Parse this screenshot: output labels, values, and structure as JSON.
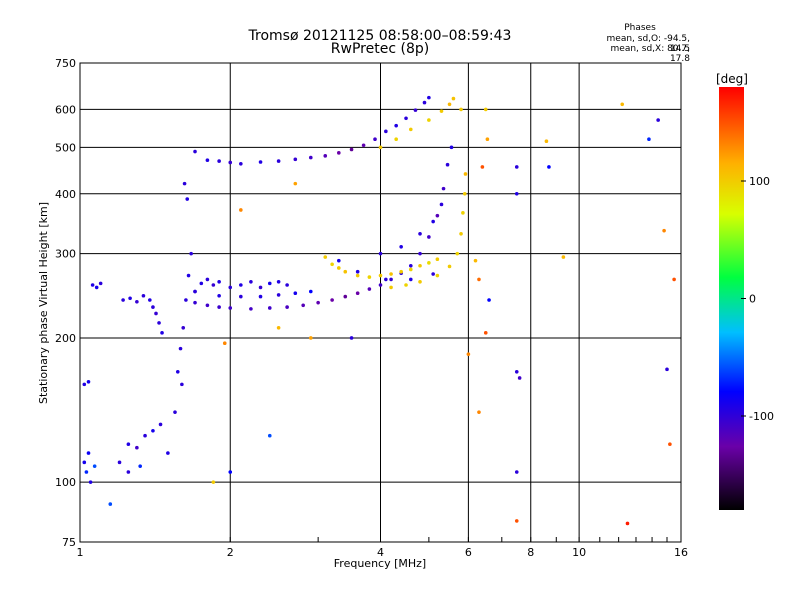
{
  "title_line1": "Tromsø 20121125 08:58:00–08:59:43",
  "title_line2": "RwPretec (8p)",
  "phase_box": {
    "heading": "Phases",
    "line1": "mean, sd,O: -94.5, 14.5",
    "line2": "mean, sd,X:  80.7, 17.8"
  },
  "chart_data": {
    "type": "scatter",
    "title": "Tromsø 20121125 08:58:00–08:59:43",
    "subtitle": "RwPretec (8p)",
    "xlabel": "Frequency [MHz]",
    "ylabel": "Stationary phase Virtual Height [km]",
    "x_scale": "log",
    "y_scale": "log",
    "xlim": [
      1,
      16
    ],
    "ylim": [
      75,
      750
    ],
    "x_ticks": [
      1,
      2,
      4,
      6,
      8,
      10,
      16
    ],
    "x_ticklabels": [
      "1",
      "2",
      "4",
      "6",
      "8",
      "10",
      "16"
    ],
    "y_ticks": [
      75,
      100,
      200,
      300,
      400,
      500,
      600,
      750
    ],
    "y_ticklabels": [
      "75",
      "100",
      "200",
      "300",
      "400",
      "500",
      "600",
      "750"
    ],
    "grid": true,
    "colorbar": {
      "label": "[deg]",
      "range": [
        -180,
        180
      ],
      "ticks": [
        100,
        0,
        -100
      ],
      "ticklabels": [
        "100",
        "0",
        "-100"
      ],
      "colormap": "rainbow"
    },
    "series": [
      {
        "columns": [
          "freq_mhz",
          "height_km",
          "phase_deg"
        ],
        "points": [
          [
            1.02,
            110,
            -90
          ],
          [
            1.03,
            105,
            -70
          ],
          [
            1.04,
            115,
            -85
          ],
          [
            1.05,
            100,
            -95
          ],
          [
            1.07,
            108,
            -60
          ],
          [
            1.02,
            160,
            -95
          ],
          [
            1.04,
            162,
            -90
          ],
          [
            1.06,
            258,
            -95
          ],
          [
            1.08,
            255,
            -90
          ],
          [
            1.1,
            260,
            -100
          ],
          [
            1.22,
            240,
            -100
          ],
          [
            1.26,
            242,
            -95
          ],
          [
            1.3,
            238,
            -105
          ],
          [
            1.34,
            245,
            -100
          ],
          [
            1.38,
            240,
            -95
          ],
          [
            1.4,
            232,
            -100
          ],
          [
            1.42,
            225,
            -105
          ],
          [
            1.44,
            215,
            -100
          ],
          [
            1.46,
            205,
            -95
          ],
          [
            1.2,
            110,
            -100
          ],
          [
            1.25,
            120,
            -95
          ],
          [
            1.3,
            118,
            -110
          ],
          [
            1.35,
            125,
            -100
          ],
          [
            1.4,
            128,
            -90
          ],
          [
            1.45,
            132,
            -100
          ],
          [
            1.5,
            115,
            -95
          ],
          [
            1.25,
            105,
            -100
          ],
          [
            1.32,
            108,
            -70
          ],
          [
            1.55,
            140,
            -100
          ],
          [
            1.57,
            170,
            -95
          ],
          [
            1.59,
            190,
            -100
          ],
          [
            1.61,
            210,
            -105
          ],
          [
            1.63,
            240,
            -100
          ],
          [
            1.65,
            270,
            -95
          ],
          [
            1.67,
            300,
            -100
          ],
          [
            1.62,
            420,
            -100
          ],
          [
            1.64,
            390,
            -95
          ],
          [
            1.6,
            160,
            -100
          ],
          [
            1.7,
            250,
            -100
          ],
          [
            1.75,
            260,
            -95
          ],
          [
            1.8,
            265,
            -100
          ],
          [
            1.85,
            258,
            -105
          ],
          [
            1.9,
            262,
            -95
          ],
          [
            2.0,
            255,
            -100
          ],
          [
            2.1,
            258,
            -95
          ],
          [
            2.2,
            262,
            -100
          ],
          [
            2.3,
            255,
            -105
          ],
          [
            2.4,
            260,
            -90
          ],
          [
            2.5,
            262,
            -95
          ],
          [
            2.6,
            258,
            -100
          ],
          [
            1.7,
            237,
            -105
          ],
          [
            1.8,
            234,
            -110
          ],
          [
            1.9,
            232,
            -108
          ],
          [
            2.0,
            231,
            -110
          ],
          [
            2.2,
            230,
            -112
          ],
          [
            2.4,
            231,
            -110
          ],
          [
            2.6,
            232,
            -115
          ],
          [
            2.8,
            234,
            -120
          ],
          [
            3.0,
            237,
            -125
          ],
          [
            3.2,
            240,
            -130
          ],
          [
            3.4,
            244,
            -135
          ],
          [
            3.6,
            248,
            -130
          ],
          [
            3.8,
            253,
            -120
          ],
          [
            4.0,
            258,
            -110
          ],
          [
            4.2,
            265,
            -105
          ],
          [
            4.4,
            273,
            -100
          ],
          [
            4.6,
            283,
            -100
          ],
          [
            4.8,
            300,
            -105
          ],
          [
            5.0,
            325,
            -110
          ],
          [
            5.2,
            360,
            -120
          ],
          [
            5.35,
            410,
            -110
          ],
          [
            5.45,
            460,
            -100
          ],
          [
            5.55,
            500,
            -95
          ],
          [
            1.7,
            250,
            -100
          ],
          [
            1.9,
            245,
            -95
          ],
          [
            2.1,
            244,
            -100
          ],
          [
            2.3,
            244,
            -95
          ],
          [
            2.5,
            246,
            -100
          ],
          [
            2.7,
            248,
            -90
          ],
          [
            2.9,
            250,
            -80
          ],
          [
            1.7,
            490,
            -100
          ],
          [
            1.8,
            470,
            -95
          ],
          [
            1.9,
            468,
            -100
          ],
          [
            2.0,
            465,
            -105
          ],
          [
            2.1,
            462,
            -100
          ],
          [
            2.3,
            466,
            -95
          ],
          [
            2.5,
            468,
            -100
          ],
          [
            2.7,
            472,
            -105
          ],
          [
            2.9,
            476,
            -110
          ],
          [
            3.1,
            480,
            -120
          ],
          [
            3.3,
            487,
            -130
          ],
          [
            3.5,
            495,
            -135
          ],
          [
            3.7,
            505,
            -125
          ],
          [
            3.9,
            520,
            -110
          ],
          [
            4.1,
            540,
            -100
          ],
          [
            4.3,
            555,
            -95
          ],
          [
            4.5,
            575,
            -100
          ],
          [
            4.7,
            598,
            -105
          ],
          [
            4.9,
            620,
            -100
          ],
          [
            5.0,
            635,
            -95
          ],
          [
            3.1,
            295,
            100
          ],
          [
            3.2,
            285,
            95
          ],
          [
            3.3,
            280,
            100
          ],
          [
            3.4,
            275,
            105
          ],
          [
            3.6,
            270,
            100
          ],
          [
            3.8,
            268,
            95
          ],
          [
            4.0,
            270,
            100
          ],
          [
            4.2,
            272,
            105
          ],
          [
            4.4,
            275,
            100
          ],
          [
            4.6,
            278,
            95
          ],
          [
            4.8,
            283,
            100
          ],
          [
            5.0,
            287,
            90
          ],
          [
            5.2,
            292,
            100
          ],
          [
            4.2,
            255,
            100
          ],
          [
            4.5,
            258,
            95
          ],
          [
            4.8,
            262,
            100
          ],
          [
            5.2,
            270,
            95
          ],
          [
            5.5,
            282,
            100
          ],
          [
            5.7,
            300,
            95
          ],
          [
            5.8,
            330,
            100
          ],
          [
            5.85,
            365,
            95
          ],
          [
            5.9,
            400,
            100
          ],
          [
            5.92,
            440,
            110
          ],
          [
            4.0,
            500,
            100
          ],
          [
            4.3,
            520,
            95
          ],
          [
            4.6,
            545,
            100
          ],
          [
            5.0,
            570,
            95
          ],
          [
            5.3,
            595,
            100
          ],
          [
            5.5,
            615,
            110
          ],
          [
            5.6,
            632,
            105
          ],
          [
            3.3,
            290,
            -90
          ],
          [
            3.6,
            275,
            -95
          ],
          [
            4.1,
            265,
            -100
          ],
          [
            4.6,
            265,
            -95
          ],
          [
            5.1,
            272,
            -100
          ],
          [
            4.0,
            300,
            -100
          ],
          [
            4.4,
            310,
            -95
          ],
          [
            4.8,
            330,
            -100
          ],
          [
            5.1,
            350,
            -95
          ],
          [
            5.3,
            380,
            -100
          ],
          [
            6.4,
            455,
            150
          ],
          [
            6.5,
            600,
            100
          ],
          [
            6.55,
            520,
            120
          ],
          [
            7.5,
            455,
            -100
          ],
          [
            7.5,
            170,
            -100
          ],
          [
            7.6,
            165,
            -110
          ],
          [
            8.7,
            455,
            -80
          ],
          [
            7.5,
            105,
            -100
          ],
          [
            7.5,
            400,
            -95
          ],
          [
            9.3,
            295,
            110
          ],
          [
            6.6,
            240,
            -80
          ],
          [
            6.3,
            265,
            140
          ],
          [
            7.5,
            83,
            150
          ],
          [
            12.5,
            82,
            170
          ],
          [
            12.2,
            615,
            110
          ],
          [
            13.8,
            520,
            -70
          ],
          [
            14.4,
            570,
            -100
          ],
          [
            14.8,
            335,
            130
          ],
          [
            15.0,
            172,
            -100
          ],
          [
            15.2,
            120,
            150
          ],
          [
            15.5,
            265,
            150
          ],
          [
            8.6,
            515,
            110
          ],
          [
            6.3,
            140,
            130
          ],
          [
            2.5,
            210,
            110
          ],
          [
            2.9,
            200,
            120
          ],
          [
            3.5,
            200,
            -100
          ],
          [
            2.7,
            420,
            120
          ],
          [
            2.1,
            370,
            130
          ],
          [
            2.4,
            125,
            -60
          ],
          [
            1.95,
            195,
            130
          ],
          [
            1.85,
            100,
            100
          ],
          [
            1.15,
            90,
            -60
          ],
          [
            2.0,
            105,
            -80
          ],
          [
            6.2,
            290,
            110
          ],
          [
            6.0,
            185,
            130
          ],
          [
            5.8,
            600,
            100
          ],
          [
            6.5,
            205,
            150
          ]
        ]
      }
    ]
  }
}
